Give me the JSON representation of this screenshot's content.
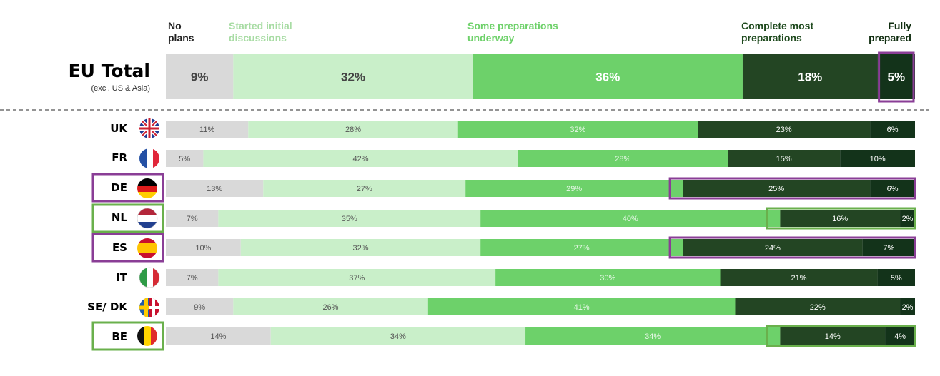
{
  "legend": [
    {
      "label_line1": "No",
      "label_line2": "plans",
      "color": "#222222"
    },
    {
      "label_line1": "Started initial",
      "label_line2": "discussions",
      "color": "#a8dca4"
    },
    {
      "label_line1": "Some preparations",
      "label_line2": "underway",
      "color": "#6ed16a"
    },
    {
      "label_line1": "Complete most",
      "label_line2": "preparations",
      "color": "#1f4a1e"
    },
    {
      "label_line1": "Fully",
      "label_line2": "prepared",
      "color": "#102e10"
    }
  ],
  "total": {
    "title": "EU Total",
    "subtitle": "(excl. US & Asia)"
  },
  "colors": {
    "no_plans": "#d9d9d9",
    "started": "#c9efc9",
    "some": "#6dd16a",
    "complete": "#234523",
    "fully": "#13331a",
    "highlight_purple": "#8a3e96",
    "highlight_green": "#6ab04c"
  },
  "chart_data": {
    "type": "bar",
    "stacked": true,
    "orientation": "horizontal",
    "normalized_percent": true,
    "series": [
      {
        "name": "No plans"
      },
      {
        "name": "Started initial discussions"
      },
      {
        "name": "Some preparations underway"
      },
      {
        "name": "Complete most preparations"
      },
      {
        "name": "Fully prepared"
      }
    ],
    "total": {
      "values": [
        9,
        32,
        36,
        18,
        5
      ],
      "labels": [
        "9%",
        "32%",
        "36%",
        "18%",
        "5%"
      ]
    },
    "rows": [
      {
        "country": "UK",
        "flag": "uk-flag-icon",
        "values": [
          11,
          28,
          32,
          23,
          6
        ],
        "labels": [
          "11%",
          "28%",
          "32%",
          "23%",
          "6%"
        ]
      },
      {
        "country": "FR",
        "flag": "france-flag-icon",
        "values": [
          5,
          42,
          28,
          15,
          10
        ],
        "labels": [
          "5%",
          "42%",
          "28%",
          "15%",
          "10%"
        ]
      },
      {
        "country": "DE",
        "flag": "germany-flag-icon",
        "values": [
          13,
          27,
          29,
          25,
          6
        ],
        "labels": [
          "13%",
          "27%",
          "29%",
          "25%",
          "6%"
        ],
        "highlight": "purple"
      },
      {
        "country": "NL",
        "flag": "netherlands-flag-icon",
        "values": [
          7,
          35,
          40,
          16,
          2
        ],
        "labels": [
          "7%",
          "35%",
          "40%",
          "16%",
          "2%"
        ],
        "highlight": "green"
      },
      {
        "country": "ES",
        "flag": "spain-flag-icon",
        "values": [
          10,
          32,
          27,
          24,
          7
        ],
        "labels": [
          "10%",
          "32%",
          "27%",
          "24%",
          "7%"
        ],
        "highlight": "purple"
      },
      {
        "country": "IT",
        "flag": "italy-flag-icon",
        "values": [
          7,
          37,
          30,
          21,
          5
        ],
        "labels": [
          "7%",
          "37%",
          "30%",
          "21%",
          "5%"
        ]
      },
      {
        "country": "SE/ DK",
        "flag": "sweden-denmark-flag-icon",
        "values": [
          9,
          26,
          41,
          22,
          2
        ],
        "labels": [
          "9%",
          "26%",
          "41%",
          "22%",
          "2%"
        ]
      },
      {
        "country": "BE",
        "flag": "belgium-flag-icon",
        "values": [
          14,
          34,
          34,
          14,
          4
        ],
        "labels": [
          "14%",
          "34%",
          "34%",
          "14%",
          "4%"
        ],
        "highlight": "green"
      }
    ]
  }
}
